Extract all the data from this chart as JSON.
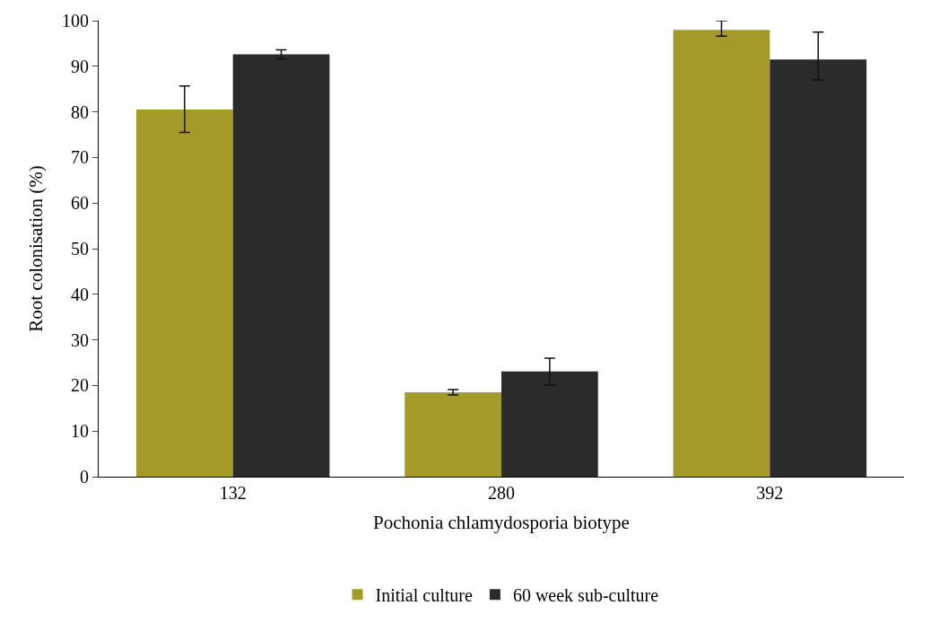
{
  "chart_data": {
    "type": "bar",
    "xlabel": "Pochonia chlamydosporia biotype",
    "ylabel": "Root colonisation (%)",
    "categories": [
      "132",
      "280",
      "392"
    ],
    "series": [
      {
        "name": "Initial culture",
        "color": "#a39a2a",
        "values": [
          80.5,
          18.5,
          98
        ],
        "errors": [
          [
            75.5,
            85.7
          ],
          [
            17.9,
            19.1
          ],
          [
            96.6,
            100
          ]
        ]
      },
      {
        "name": "60 week sub-culture",
        "color": "#2b2b2b",
        "values": [
          92.6,
          23.1,
          91.5
        ],
        "errors": [
          [
            91.6,
            93.6
          ],
          [
            20.1,
            26
          ],
          [
            87,
            97.5
          ]
        ]
      }
    ],
    "ylim": [
      0,
      100
    ],
    "yticks": [
      0,
      10,
      20,
      30,
      40,
      50,
      60,
      70,
      80,
      90,
      100
    ],
    "legend": "bottom"
  }
}
